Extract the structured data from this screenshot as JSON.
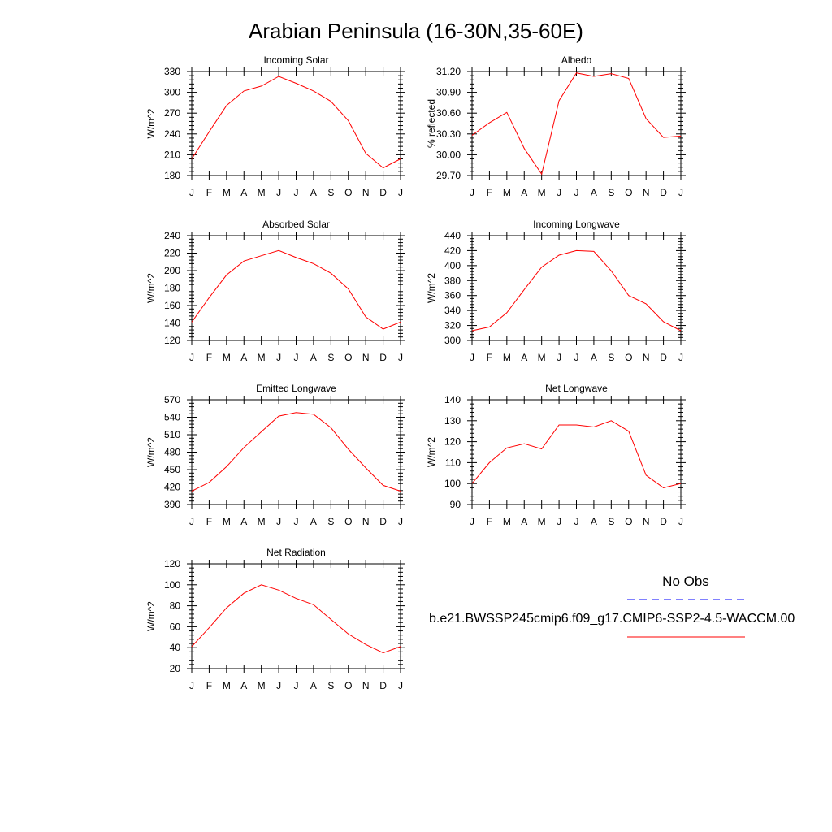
{
  "title": "Arabian Peninsula (16-30N,35-60E)",
  "colors": {
    "model": "#ff0000",
    "obs": "#0000ff"
  },
  "legend": {
    "obs_label": "No Obs",
    "model_label": "b.e21.BWSSP245cmip6.f09_g17.CMIP6-SSP2-4.5-WACCM.00"
  },
  "chart_data": [
    {
      "type": "line",
      "title": "Incoming Solar",
      "ylabel": "W/m^2",
      "categories": [
        "J",
        "F",
        "M",
        "A",
        "M",
        "J",
        "J",
        "A",
        "S",
        "O",
        "N",
        "D",
        "J"
      ],
      "ylim": [
        180,
        330
      ],
      "yticks": [
        "180",
        "210",
        "240",
        "270",
        "300",
        "330"
      ],
      "series": [
        {
          "values": [
            204,
            243,
            281,
            302,
            309,
            323,
            313,
            302,
            287,
            259,
            212,
            191,
            204
          ]
        }
      ]
    },
    {
      "type": "line",
      "title": "Albedo",
      "ylabel": "% reflected",
      "categories": [
        "J",
        "F",
        "M",
        "A",
        "M",
        "J",
        "J",
        "A",
        "S",
        "O",
        "N",
        "D",
        "J"
      ],
      "ylim": [
        29.7,
        31.2
      ],
      "yticks": [
        "29.70",
        "30.00",
        "30.30",
        "30.60",
        "30.90",
        "31.20"
      ],
      "series": [
        {
          "values": [
            30.28,
            30.46,
            30.61,
            30.09,
            29.72,
            30.78,
            31.18,
            31.13,
            31.17,
            31.1,
            30.52,
            30.25,
            30.27
          ]
        }
      ]
    },
    {
      "type": "line",
      "title": "Absorbed Solar",
      "ylabel": "W/m^2",
      "categories": [
        "J",
        "F",
        "M",
        "A",
        "M",
        "J",
        "J",
        "A",
        "S",
        "O",
        "N",
        "D",
        "J"
      ],
      "ylim": [
        120,
        240
      ],
      "yticks": [
        "120",
        "140",
        "160",
        "180",
        "200",
        "220",
        "240"
      ],
      "series": [
        {
          "values": [
            141,
            169,
            195,
            211,
            217,
            223,
            215,
            208,
            197,
            179,
            147,
            133,
            141
          ]
        }
      ]
    },
    {
      "type": "line",
      "title": "Incoming Longwave",
      "ylabel": "W/m^2",
      "categories": [
        "J",
        "F",
        "M",
        "A",
        "M",
        "J",
        "J",
        "A",
        "S",
        "O",
        "N",
        "D",
        "J"
      ],
      "ylim": [
        300,
        440
      ],
      "yticks": [
        "300",
        "320",
        "340",
        "360",
        "380",
        "400",
        "420",
        "440"
      ],
      "series": [
        {
          "values": [
            313,
            318,
            337,
            368,
            398,
            414,
            420,
            419,
            393,
            360,
            349,
            325,
            313
          ]
        }
      ]
    },
    {
      "type": "line",
      "title": "Emitted Longwave",
      "ylabel": "W/m^2",
      "categories": [
        "J",
        "F",
        "M",
        "A",
        "M",
        "J",
        "J",
        "A",
        "S",
        "O",
        "N",
        "D",
        "J"
      ],
      "ylim": [
        390,
        570
      ],
      "yticks": [
        "390",
        "420",
        "450",
        "480",
        "510",
        "540",
        "570"
      ],
      "series": [
        {
          "values": [
            413,
            428,
            455,
            488,
            515,
            542,
            548,
            545,
            522,
            485,
            453,
            423,
            413
          ]
        }
      ]
    },
    {
      "type": "line",
      "title": "Net Longwave",
      "ylabel": "W/m^2",
      "categories": [
        "J",
        "F",
        "M",
        "A",
        "M",
        "J",
        "J",
        "A",
        "S",
        "O",
        "N",
        "D",
        "J"
      ],
      "ylim": [
        90,
        140
      ],
      "yticks": [
        "90",
        "100",
        "110",
        "120",
        "130",
        "140"
      ],
      "series": [
        {
          "values": [
            100,
            110,
            117,
            119,
            116.5,
            128,
            128,
            127,
            130,
            125,
            104,
            98,
            100
          ]
        }
      ]
    },
    {
      "type": "line",
      "title": "Net Radiation",
      "ylabel": "W/m^2",
      "categories": [
        "J",
        "F",
        "M",
        "A",
        "M",
        "J",
        "J",
        "A",
        "S",
        "O",
        "N",
        "D",
        "J"
      ],
      "ylim": [
        20,
        120
      ],
      "yticks": [
        "20",
        "40",
        "60",
        "80",
        "100",
        "120"
      ],
      "series": [
        {
          "values": [
            41,
            59,
            78,
            92,
            100,
            95,
            87,
            81,
            67,
            53,
            43,
            35,
            41
          ]
        }
      ]
    }
  ]
}
